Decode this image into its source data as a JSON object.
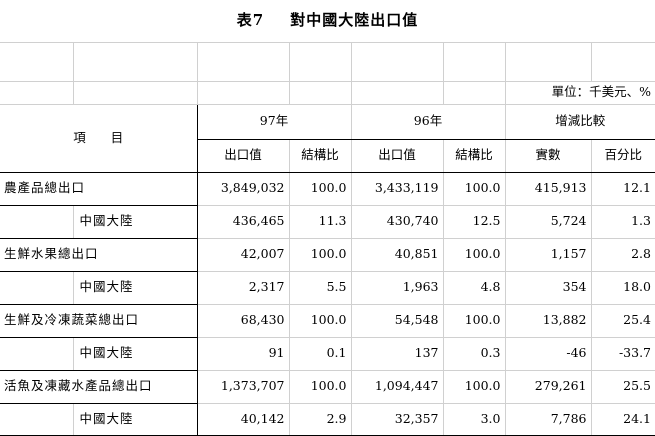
{
  "title": {
    "number": "表7",
    "text": "對中國大陸出口值"
  },
  "unit": "單位：千美元、%",
  "header": {
    "item": "項　　目",
    "year1": "97年",
    "year2": "96年",
    "change": "增減比較",
    "export_value": "出口值",
    "share": "結構比",
    "amount": "實數",
    "percent": "百分比"
  },
  "rows": [
    {
      "label": "農產品總出口",
      "v97": "3,849,032",
      "s97": "100.0",
      "v96": "3,433,119",
      "s96": "100.0",
      "diff": "415,913",
      "pct": "12.1"
    },
    {
      "label": "中國大陸",
      "v97": "436,465",
      "s97": "11.3",
      "v96": "430,740",
      "s96": "12.5",
      "diff": "5,724",
      "pct": "1.3"
    },
    {
      "label": "生鮮水果總出口",
      "v97": "42,007",
      "s97": "100.0",
      "v96": "40,851",
      "s96": "100.0",
      "diff": "1,157",
      "pct": "2.8"
    },
    {
      "label": "中國大陸",
      "v97": "2,317",
      "s97": "5.5",
      "v96": "1,963",
      "s96": "4.8",
      "diff": "354",
      "pct": "18.0"
    },
    {
      "label": "生鮮及冷凍蔬菜總出口",
      "v97": "68,430",
      "s97": "100.0",
      "v96": "54,548",
      "s96": "100.0",
      "diff": "13,882",
      "pct": "25.4"
    },
    {
      "label": "中國大陸",
      "v97": "91",
      "s97": "0.1",
      "v96": "137",
      "s96": "0.3",
      "diff": "-46",
      "pct": "-33.7"
    },
    {
      "label": "活魚及凍藏水產品總出口",
      "v97": "1,373,707",
      "s97": "100.0",
      "v96": "1,094,447",
      "s96": "100.0",
      "diff": "279,261",
      "pct": "25.5"
    },
    {
      "label": "中國大陸",
      "v97": "40,142",
      "s97": "2.9",
      "v96": "32,357",
      "s96": "3.0",
      "diff": "7,786",
      "pct": "24.1"
    }
  ]
}
